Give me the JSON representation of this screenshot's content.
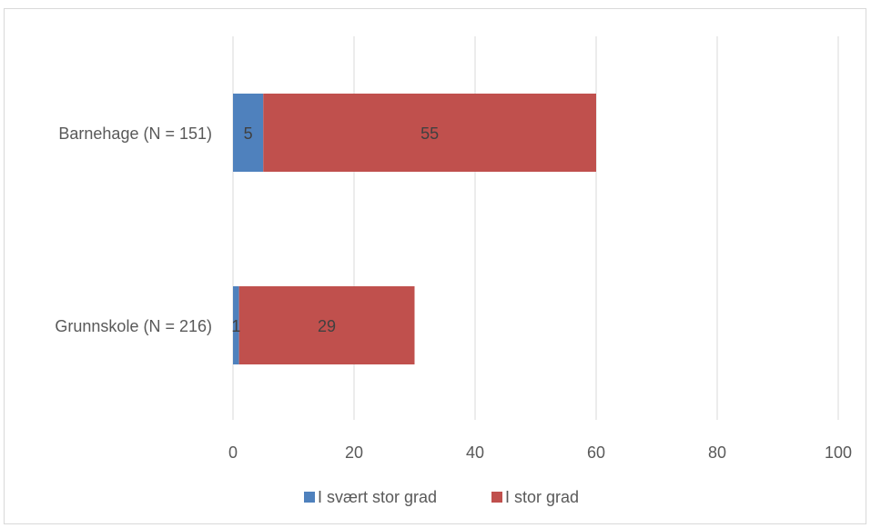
{
  "chart_data": {
    "type": "bar",
    "orientation": "horizontal",
    "stacked": true,
    "categories": [
      "Barnehage (N = 151)",
      "Grunnskole (N = 216)"
    ],
    "series": [
      {
        "name": "I svært stor grad",
        "values": [
          5,
          1
        ],
        "color": "#4f81bd"
      },
      {
        "name": "I stor grad",
        "values": [
          55,
          29
        ],
        "color": "#c0504d"
      }
    ],
    "xlim": [
      0,
      100
    ],
    "xticks": [
      0,
      20,
      40,
      60,
      80,
      100
    ],
    "grid": true,
    "legend_position": "bottom",
    "title": "",
    "xlabel": "",
    "ylabel": ""
  }
}
